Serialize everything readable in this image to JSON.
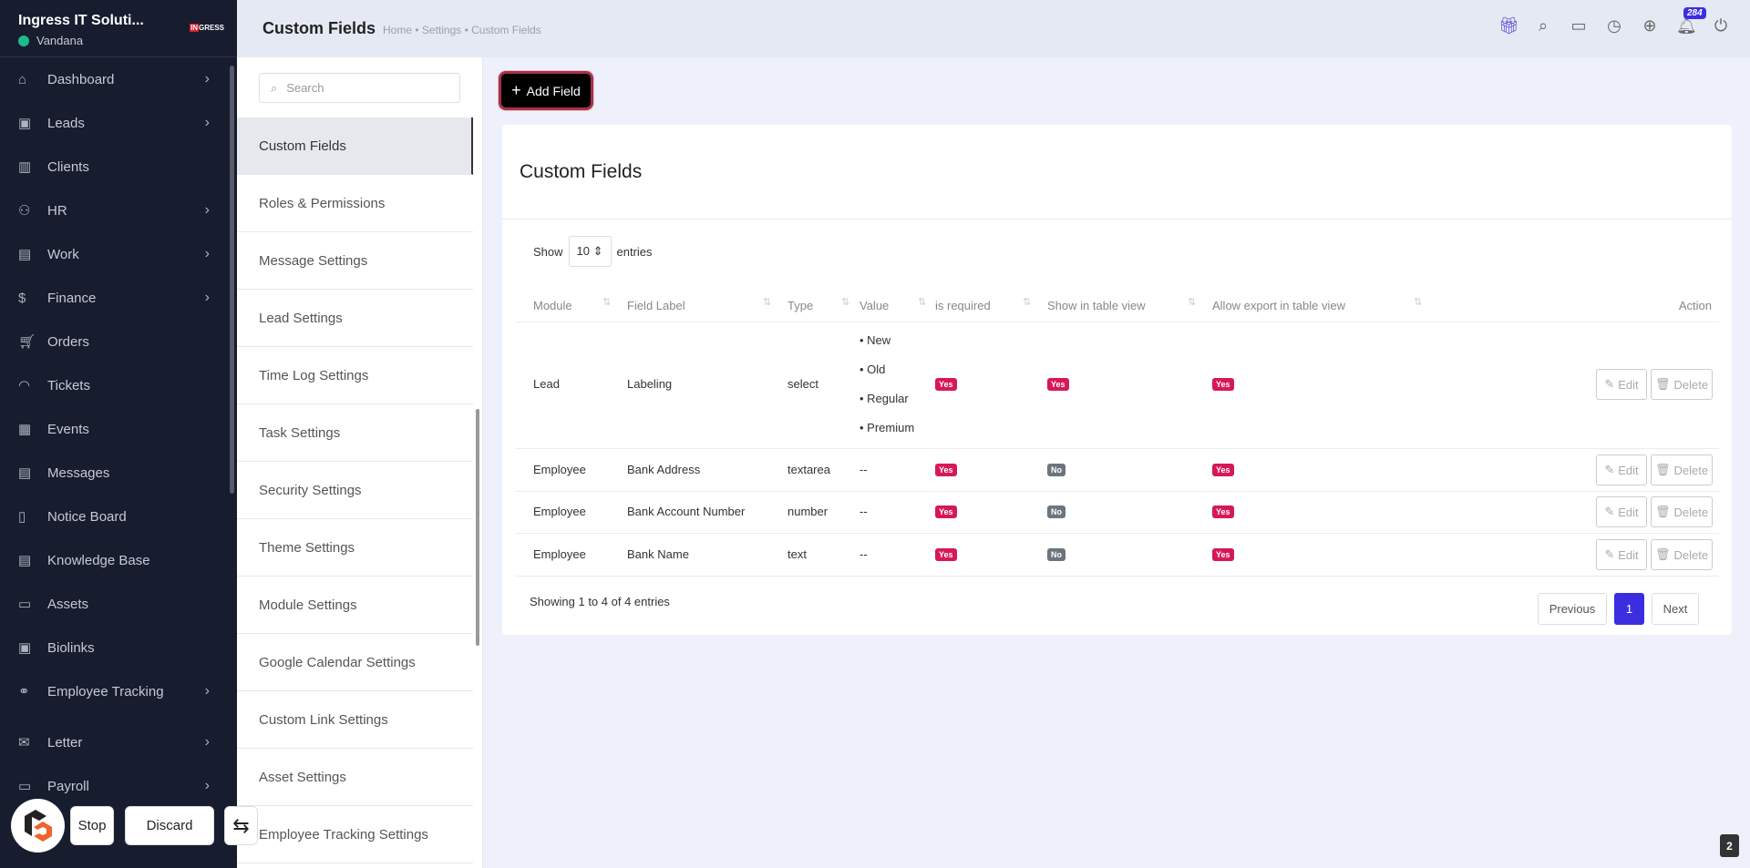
{
  "sidebar": {
    "company": "Ingress IT Soluti...",
    "user": "Vandana",
    "logo_text": "INGRESS",
    "items": [
      {
        "label": "Dashboard",
        "icon": "home-icon",
        "chev": true
      },
      {
        "label": "Leads",
        "icon": "id-card-icon",
        "chev": true
      },
      {
        "label": "Clients",
        "icon": "building-icon",
        "chev": false
      },
      {
        "label": "HR",
        "icon": "users-icon",
        "chev": true
      },
      {
        "label": "Work",
        "icon": "briefcase-icon",
        "chev": true
      },
      {
        "label": "Finance",
        "icon": "dollar-icon",
        "chev": true
      },
      {
        "label": "Orders",
        "icon": "cart-icon",
        "chev": false
      },
      {
        "label": "Tickets",
        "icon": "headset-icon",
        "chev": false
      },
      {
        "label": "Events",
        "icon": "calendar-icon",
        "chev": false
      },
      {
        "label": "Messages",
        "icon": "message-icon",
        "chev": false
      },
      {
        "label": "Notice Board",
        "icon": "clipboard-icon",
        "chev": false
      },
      {
        "label": "Knowledge Base",
        "icon": "document-icon",
        "chev": false
      },
      {
        "label": "Assets",
        "icon": "monitor-icon",
        "chev": false
      },
      {
        "label": "Biolinks",
        "icon": "profile-icon",
        "chev": false
      },
      {
        "label": "Employee Tracking",
        "icon": "tracking-icon",
        "chev": true
      },
      {
        "label": "Letter",
        "icon": "mail-icon",
        "chev": true
      },
      {
        "label": "Payroll",
        "icon": "wallet-icon",
        "chev": true
      }
    ]
  },
  "header": {
    "title": "Custom Fields",
    "breadcrumb": "Home • Settings • Custom Fields",
    "notification_count": "284"
  },
  "settings_menu": {
    "search_placeholder": "Search",
    "items": [
      "Custom Fields",
      "Roles & Permissions",
      "Message Settings",
      "Lead Settings",
      "Time Log Settings",
      "Task Settings",
      "Security Settings",
      "Theme Settings",
      "Module Settings",
      "Google Calendar Settings",
      "Custom Link Settings",
      "Asset Settings",
      "Employee Tracking Settings"
    ],
    "active": "Custom Fields"
  },
  "main": {
    "add_button": "Add Field",
    "card_title": "Custom Fields",
    "show_label": "Show",
    "entries_value": "10",
    "entries_label": "entries",
    "columns": [
      "Module",
      "Field Label",
      "Type",
      "Value",
      "is required",
      "Show in table view",
      "Allow export in table view",
      "Action"
    ],
    "rows": [
      {
        "module": "Lead",
        "label": "Labeling",
        "type": "select",
        "values": [
          "New",
          "Old",
          "Regular",
          "Premium"
        ],
        "required": "Yes",
        "show": "Yes",
        "export": "Yes"
      },
      {
        "module": "Employee",
        "label": "Bank Address",
        "type": "textarea",
        "value": "--",
        "required": "Yes",
        "show": "No",
        "export": "Yes"
      },
      {
        "module": "Employee",
        "label": "Bank Account Number",
        "type": "number",
        "value": "--",
        "required": "Yes",
        "show": "No",
        "export": "Yes"
      },
      {
        "module": "Employee",
        "label": "Bank Name",
        "type": "text",
        "value": "--",
        "required": "Yes",
        "show": "No",
        "export": "Yes"
      }
    ],
    "edit_label": "Edit",
    "delete_label": "Delete",
    "footer": "Showing 1 to 4 of 4 entries",
    "pagination": {
      "previous": "Previous",
      "current": "1",
      "next": "Next"
    }
  },
  "overlay": {
    "stop": "Stop",
    "discard": "Discard"
  },
  "page_badge": "2",
  "colors": {
    "sidebar": "#171c2f",
    "accent": "#3b2ee0",
    "yes": "#d6185a",
    "no": "#6c757d"
  }
}
